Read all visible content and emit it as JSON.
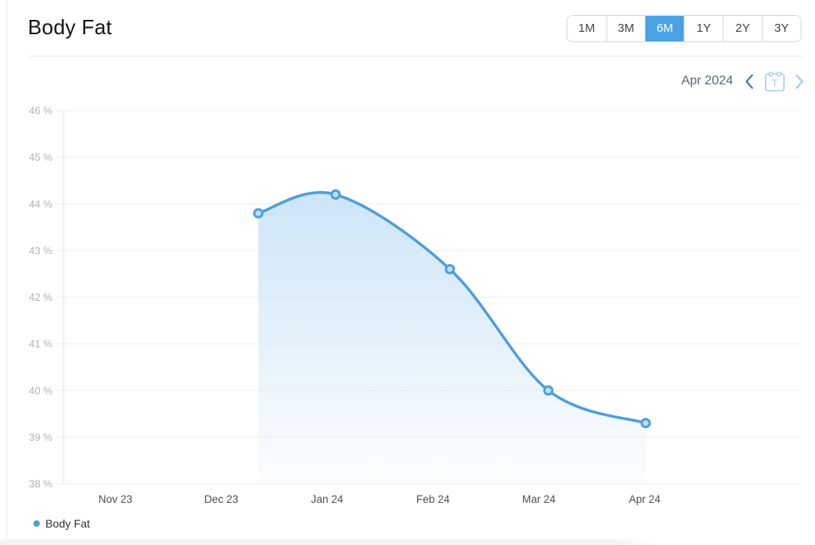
{
  "header": {
    "title": "Body Fat"
  },
  "range_selector": {
    "options": [
      "1M",
      "3M",
      "6M",
      "1Y",
      "2Y",
      "3Y"
    ],
    "selected": "6M"
  },
  "date_nav": {
    "label": "Apr 2024",
    "calendar_icon_letter": "T"
  },
  "legend": {
    "items": [
      {
        "label": "Body Fat",
        "color": "#4a9fdd"
      }
    ]
  },
  "colors": {
    "accent_blue": "#4aa1e4",
    "line_blue": "#4f9ed9",
    "marker_fill": "#bfe0f5",
    "area_top": "#cae4f7",
    "grid": "#ededed",
    "axis": "#e0e0e0",
    "y_label": "#b0b3b6",
    "x_label": "#4f4f4f",
    "nav_active": "#3a7cb8",
    "nav_disabled": "#a6cbe7"
  },
  "chart_data": {
    "type": "area",
    "title": "Body Fat",
    "unit": "%",
    "x_tick_labels": [
      "Nov 23",
      "Dec 23",
      "Jan 24",
      "Feb 24",
      "Mar 24",
      "Apr 24"
    ],
    "y_ticks": [
      46,
      45,
      44,
      43,
      42,
      41,
      40,
      39,
      38
    ],
    "ylim": [
      38,
      46
    ],
    "grid": true,
    "legend_position": "bottom-left",
    "series": [
      {
        "name": "Body Fat",
        "points": [
          {
            "x": 1.35,
            "y": 43.8
          },
          {
            "x": 2.08,
            "y": 44.2
          },
          {
            "x": 3.16,
            "y": 42.6
          },
          {
            "x": 4.09,
            "y": 40.0
          },
          {
            "x": 5.01,
            "y": 39.3
          }
        ]
      }
    ]
  }
}
